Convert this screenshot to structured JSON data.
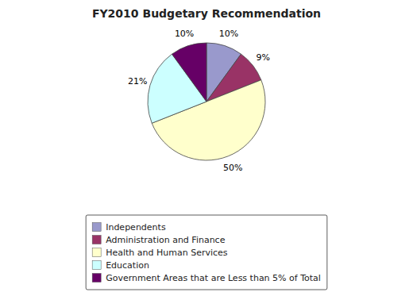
{
  "chart_data": {
    "type": "pie",
    "title": "FY2010 Budgetary Recommendation",
    "categories": [
      "Independents",
      "Administration and Finance",
      "Health and Human Services",
      "Education",
      "Government Areas that are Less than 5% of Total"
    ],
    "values": [
      10,
      9,
      50,
      21,
      10
    ],
    "value_labels": [
      "10%",
      "9%",
      "50%",
      "21%",
      "10%"
    ],
    "colors": [
      "#9999cc",
      "#993366",
      "#ffffcc",
      "#ccffff",
      "#660066"
    ],
    "data_labels": true,
    "legend": "bottom"
  }
}
